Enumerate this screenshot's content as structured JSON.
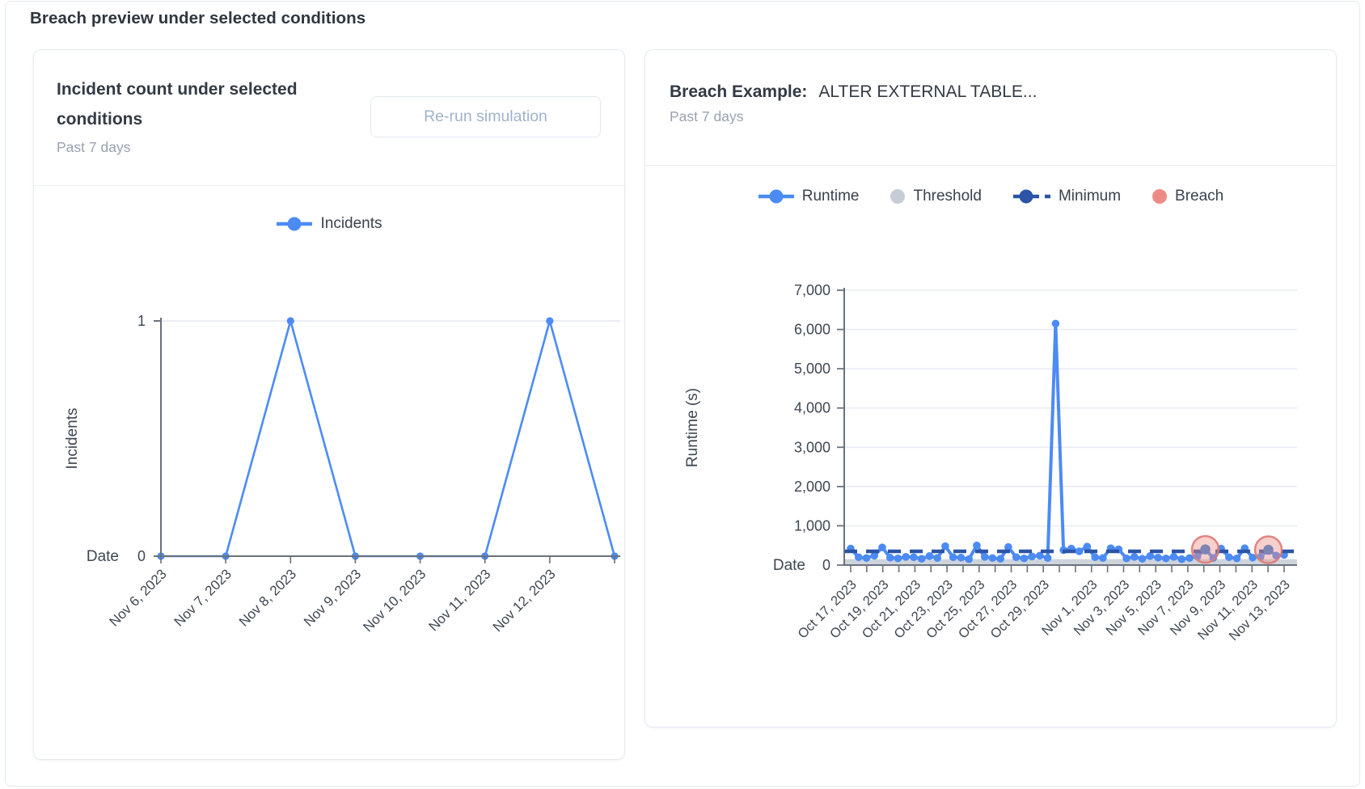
{
  "page": {
    "title": "Breach preview under selected conditions"
  },
  "incident_card": {
    "title": "Incident count under selected conditions",
    "subtitle": "Past 7 days",
    "button_label": "Re-run simulation"
  },
  "breach_card": {
    "title_label": "Breach Example:",
    "title_value": "ALTER EXTERNAL TABLE...",
    "subtitle": "Past 7 days"
  },
  "colors": {
    "runtime": "#4C8BF4",
    "threshold": "#C6CDD6",
    "minimum": "#2B54A6",
    "breach": "#ED8C86",
    "breach_ring": "#DE7A73",
    "breach_inner_dot": "#7C84B4",
    "grid": "#E9ECF4",
    "axis": "#6A727E",
    "text": "#3E4752"
  },
  "chart_data": [
    {
      "id": "incidents",
      "type": "line",
      "legend": [
        "Incidents"
      ],
      "xlabel": "Date",
      "ylabel": "Incidents",
      "ylim": [
        0,
        1
      ],
      "y_tick_labels": [
        "0",
        "1"
      ],
      "categories": [
        "Nov 6, 2023",
        "Nov 7, 2023",
        "Nov 8, 2023",
        "Nov 9, 2023",
        "Nov 10, 2023",
        "Nov 11, 2023",
        "Nov 12, 2023",
        ""
      ],
      "values": [
        0,
        0,
        1,
        0,
        0,
        0,
        1,
        0
      ]
    },
    {
      "id": "runtime",
      "type": "line",
      "legend": [
        "Runtime",
        "Threshold",
        "Minimum",
        "Breach"
      ],
      "xlabel": "Date",
      "ylabel": "Runtime (s)",
      "ylim": [
        0,
        7000
      ],
      "y_tick_labels": [
        "0",
        "1,000",
        "2,000",
        "3,000",
        "4,000",
        "5,000",
        "6,000",
        "7,000"
      ],
      "x_start": "Oct 17, 2023",
      "x_end": "Nov 13, 2023",
      "n_days": 28,
      "samples_per_day": 2,
      "x_tick_labels": [
        "Oct 17, 2023",
        "Oct 19, 2023",
        "Oct 21, 2023",
        "Oct 23, 2023",
        "Oct 25, 2023",
        "Oct 27, 2023",
        "Oct 29, 2023",
        "Nov 1, 2023",
        "Nov 3, 2023",
        "Nov 5, 2023",
        "Nov 7, 2023",
        "Nov 9, 2023",
        "Nov 11, 2023",
        "Nov 13, 2023"
      ],
      "x_label_days": [
        0,
        2,
        4,
        6,
        8,
        10,
        12,
        15,
        17,
        19,
        21,
        23,
        25,
        27
      ],
      "runtime_values": [
        420,
        200,
        180,
        240,
        450,
        190,
        170,
        210,
        200,
        160,
        230,
        180,
        480,
        200,
        190,
        150,
        500,
        210,
        180,
        160,
        460,
        200,
        170,
        220,
        240,
        180,
        6150,
        380,
        420,
        350,
        470,
        200,
        180,
        430,
        400,
        170,
        210,
        160,
        230,
        190,
        170,
        210,
        150,
        180,
        220,
        400,
        180,
        420,
        200,
        170,
        430,
        190,
        210,
        390,
        240,
        260
      ],
      "minimum_line_value": 350,
      "threshold_band": [
        0,
        150
      ],
      "peak_value": 6150,
      "peak_day": "Oct 30, 2023",
      "breaches": [
        {
          "date": "Nov 8, 2023",
          "value": 400,
          "sample_index": 45
        },
        {
          "date": "Nov 12, 2023",
          "value": 390,
          "sample_index": 53
        }
      ]
    }
  ]
}
